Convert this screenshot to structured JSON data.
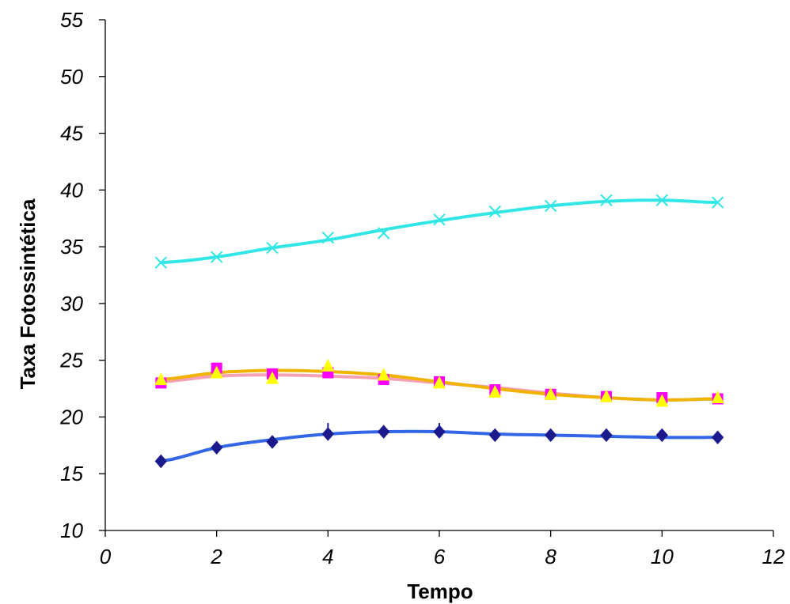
{
  "chart_data": {
    "type": "line",
    "title": "",
    "xlabel": "Tempo",
    "ylabel": "Taxa Fotossintética",
    "xlim": [
      0,
      12
    ],
    "ylim": [
      10,
      55
    ],
    "xticks": [
      "0",
      "2",
      "4",
      "6",
      "8",
      "10",
      "12"
    ],
    "yticks": [
      "10",
      "15",
      "20",
      "25",
      "30",
      "35",
      "40",
      "45",
      "50",
      "55"
    ],
    "grid": false,
    "legend": "none",
    "x": [
      1,
      2,
      3,
      4,
      5,
      6,
      7,
      8,
      9,
      10,
      11
    ],
    "series": [
      {
        "marker": "diamond",
        "marker_color": "#1a1a8c",
        "line_color": "#3366e6",
        "values": [
          16.1,
          17.3,
          17.8,
          18.5,
          18.7,
          18.7,
          18.4,
          18.4,
          18.4,
          18.4,
          18.2
        ],
        "trend": [
          16.1,
          17.3,
          18.0,
          18.5,
          18.7,
          18.7,
          18.5,
          18.4,
          18.3,
          18.2,
          18.2
        ]
      },
      {
        "marker": "square",
        "marker_color": "#ff00ff",
        "line_color": "#f5a0b4",
        "values": [
          23.0,
          24.3,
          23.8,
          23.9,
          23.3,
          23.1,
          22.4,
          22.0,
          21.8,
          21.7,
          21.6
        ],
        "trend": [
          23.1,
          23.6,
          23.7,
          23.6,
          23.4,
          23.0,
          22.6,
          22.1,
          21.7,
          21.5,
          21.6
        ]
      },
      {
        "marker": "triangle",
        "marker_color": "#ffff00",
        "line_color": "#f0b400",
        "values": [
          23.3,
          23.9,
          23.4,
          24.5,
          23.7,
          23.0,
          22.2,
          22.0,
          21.8,
          21.4,
          21.7
        ],
        "trend": [
          23.3,
          23.9,
          24.1,
          24.0,
          23.7,
          23.1,
          22.5,
          22.0,
          21.7,
          21.5,
          21.6
        ]
      },
      {
        "marker": "x",
        "marker_color": "#33e6e6",
        "line_color": "#33e6e6",
        "values": [
          33.6,
          34.1,
          34.9,
          35.8,
          36.2,
          37.4,
          38.1,
          38.6,
          39.1,
          39.1,
          38.9
        ],
        "trend": [
          33.6,
          34.1,
          34.9,
          35.6,
          36.5,
          37.3,
          38.0,
          38.6,
          39.0,
          39.1,
          38.9
        ]
      }
    ]
  }
}
